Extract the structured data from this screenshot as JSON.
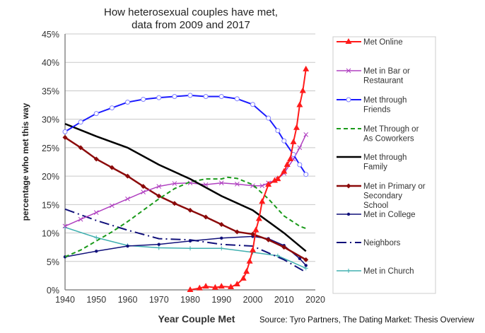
{
  "chart_data": {
    "type": "line",
    "title": [
      "How heterosexual couples have met,",
      "data from 2009 and 2017"
    ],
    "xlabel": "Year Couple Met",
    "ylabel": "percentage who met this way",
    "xlim": [
      1940,
      2020
    ],
    "ylim": [
      0,
      45
    ],
    "xticks": [
      "1940",
      "1950",
      "1960",
      "1970",
      "1980",
      "1990",
      "2000",
      "2010",
      "2020"
    ],
    "yticks": [
      "0%",
      "5%",
      "10%",
      "15%",
      "20%",
      "25%",
      "30%",
      "35%",
      "40%",
      "45%"
    ],
    "grid": true,
    "legend_position": "right",
    "source": "Source: Tyro Partners, The Dating Market: Thesis Overview",
    "series": [
      {
        "name": "Met Online",
        "label": [
          "Met Online"
        ],
        "color": "#ff1a1a",
        "marker": "triangle",
        "dash": "",
        "width": 2,
        "x": [
          1980,
          1983,
          1985,
          1988,
          1990,
          1993,
          1995,
          1997,
          1998,
          1999,
          2000,
          2001,
          2002,
          2003,
          2005,
          2007,
          2008,
          2010,
          2011,
          2012,
          2013,
          2014,
          2015,
          2016,
          2017
        ],
        "y": [
          0,
          0.3,
          0.6,
          0.4,
          0.6,
          0.5,
          1.0,
          2.0,
          3.2,
          5.0,
          7.0,
          10.5,
          12.5,
          15.5,
          18.5,
          19.2,
          19.5,
          20.8,
          22,
          23,
          26,
          28.5,
          32.5,
          35,
          38.8
        ]
      },
      {
        "name": "Met in Bar or Restaurant",
        "label": [
          "Met in Bar or",
          "Restaurant"
        ],
        "color": "#b040c0",
        "marker": "x",
        "dash": "",
        "width": 1.5,
        "x": [
          1940,
          1945,
          1950,
          1955,
          1960,
          1965,
          1970,
          1975,
          1980,
          1985,
          1990,
          1995,
          2000,
          2003,
          2005,
          2008,
          2010,
          2013,
          2015,
          2017
        ],
        "y": [
          11.2,
          12.4,
          13.6,
          14.8,
          16,
          17.2,
          18.2,
          18.7,
          18.8,
          18.5,
          18.8,
          18.6,
          18.3,
          18.3,
          18.8,
          19.5,
          20.5,
          23,
          25,
          27.3
        ]
      },
      {
        "name": "Met through Friends",
        "label": [
          "Met through",
          "Friends"
        ],
        "color": "#1a1aff",
        "marker": "circle",
        "dash": "",
        "width": 2,
        "x": [
          1940,
          1945,
          1950,
          1955,
          1960,
          1965,
          1970,
          1975,
          1980,
          1985,
          1990,
          1995,
          2000,
          2005,
          2008,
          2010,
          2013,
          2015,
          2017
        ],
        "y": [
          27.8,
          29.5,
          31,
          32,
          33,
          33.5,
          33.8,
          34,
          34.2,
          34,
          34,
          33.6,
          32.6,
          30.2,
          28,
          26.2,
          23.8,
          22,
          20.3
        ]
      },
      {
        "name": "Met Through or As Coworkers",
        "label": [
          "Met Through or",
          "As Coworkers"
        ],
        "color": "#1a9a1a",
        "marker": "",
        "dash": "6,4",
        "width": 2,
        "x": [
          1940,
          1945,
          1950,
          1955,
          1960,
          1965,
          1970,
          1975,
          1980,
          1985,
          1990,
          1992,
          1995,
          2000,
          2005,
          2010,
          2015,
          2017
        ],
        "y": [
          5.8,
          7,
          8.6,
          10.2,
          12,
          14,
          16,
          17.8,
          19,
          19.5,
          19.5,
          19.8,
          19.6,
          18.5,
          16,
          13,
          11.2,
          10.8
        ]
      },
      {
        "name": "Met through Family",
        "label": [
          "Met through",
          "Family"
        ],
        "color": "#000000",
        "marker": "",
        "dash": "",
        "width": 2.5,
        "x": [
          1940,
          1950,
          1960,
          1970,
          1980,
          1990,
          2000,
          2005,
          2010,
          2017
        ],
        "y": [
          29.2,
          27,
          25,
          22,
          19.5,
          16.5,
          14,
          12,
          10,
          6.8
        ]
      },
      {
        "name": "Met in Primary or Secondary School",
        "label": [
          "Met in Primary or",
          "Secondary",
          "School"
        ],
        "color": "#8b0a0a",
        "marker": "diamond",
        "dash": "",
        "width": 2.5,
        "x": [
          1940,
          1945,
          1950,
          1955,
          1960,
          1965,
          1970,
          1975,
          1980,
          1985,
          1990,
          1995,
          2000,
          2005,
          2010,
          2017
        ],
        "y": [
          26.8,
          25,
          23,
          21.5,
          20,
          18.2,
          16.5,
          15.2,
          14,
          12.8,
          11.5,
          10.2,
          9.8,
          8.8,
          7.5,
          5.3
        ]
      },
      {
        "name": "Met in College",
        "label": [
          "Met in College"
        ],
        "color": "#10107a",
        "marker": "dot",
        "dash": "",
        "width": 1.5,
        "x": [
          1940,
          1950,
          1960,
          1970,
          1980,
          1990,
          2000,
          2005,
          2010,
          2015,
          2017
        ],
        "y": [
          5.8,
          6.8,
          7.7,
          8,
          8.6,
          9.1,
          9.4,
          9,
          7.8,
          5.5,
          4.3
        ]
      },
      {
        "name": "Neighbors",
        "label": [
          "Neighbors"
        ],
        "color": "#10107a",
        "marker": "",
        "dash": "14,5,2,5",
        "width": 2,
        "x": [
          1940,
          1950,
          1960,
          1970,
          1980,
          1990,
          2000,
          2005,
          2010,
          2017
        ],
        "y": [
          14.2,
          12.2,
          10.5,
          9,
          8.8,
          8,
          7.7,
          6.5,
          5.3,
          3.1
        ]
      },
      {
        "name": "Met in Church",
        "label": [
          "Met in Church"
        ],
        "color": "#40b0b0",
        "marker": "plus",
        "dash": "",
        "width": 1.5,
        "x": [
          1940,
          1950,
          1960,
          1970,
          1980,
          1990,
          2000,
          2008,
          2017
        ],
        "y": [
          11,
          9.2,
          7.8,
          7.4,
          7.3,
          7.3,
          6.6,
          6,
          3.8
        ]
      }
    ]
  }
}
